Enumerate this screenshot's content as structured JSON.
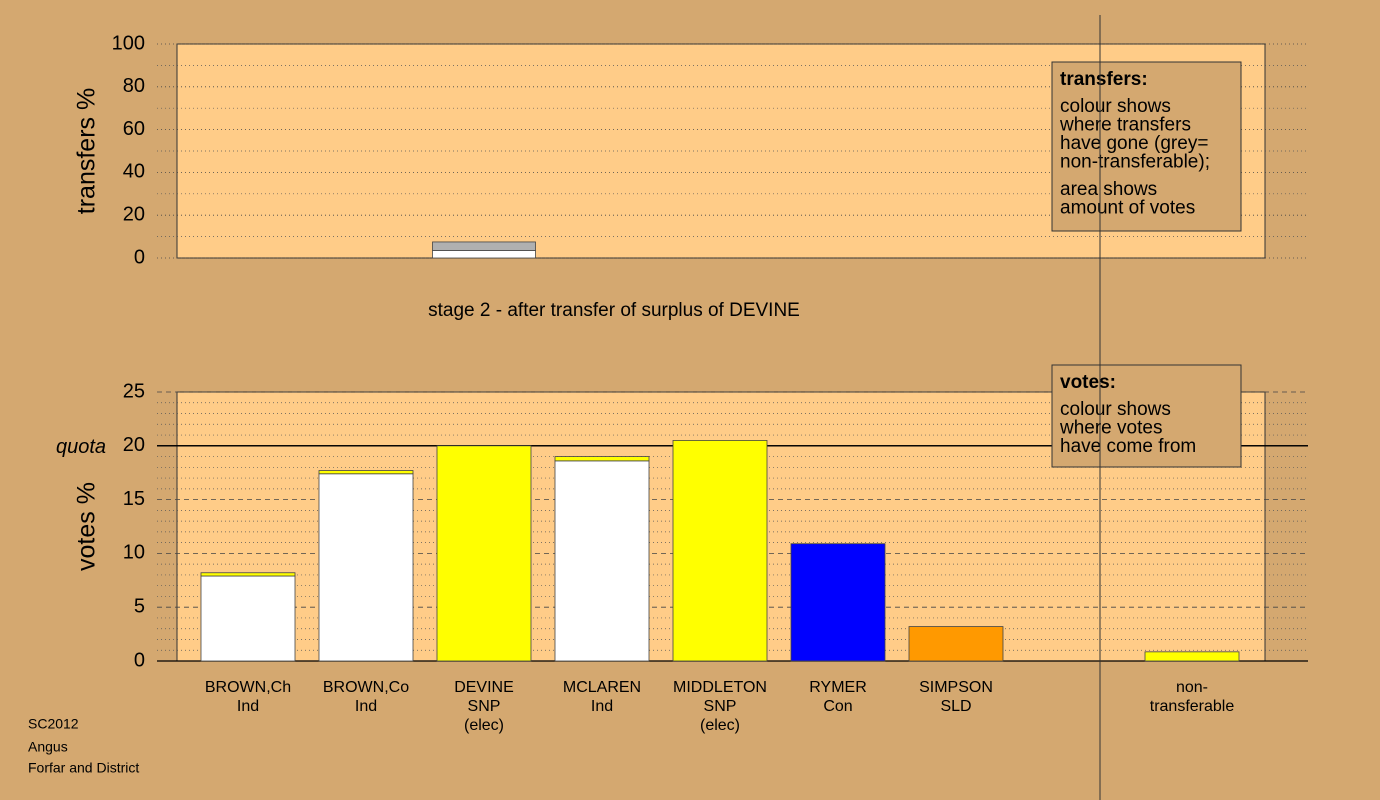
{
  "title": "stage 2 - after transfer of surplus of DEVINE",
  "footer": [
    "SC2012",
    "Angus",
    "Forfar and District"
  ],
  "chart_data": [
    {
      "type": "bar",
      "stacked": true,
      "ylabel": "transfers %",
      "ylim": [
        0,
        100
      ],
      "yticks": [
        0,
        20,
        40,
        60,
        80,
        100
      ],
      "series": [
        {
          "color": "#ffffff",
          "values": [
            null,
            null,
            3.5,
            null,
            null,
            null,
            null,
            null,
            null
          ]
        },
        {
          "color": "#b0b0b0",
          "values": [
            null,
            null,
            4,
            null,
            null,
            null,
            null,
            null,
            null
          ]
        }
      ],
      "legend": {
        "title": "transfers:",
        "paragraphs": [
          [
            "colour shows",
            "where transfers",
            "have gone (grey=",
            "non-transferable);"
          ],
          [
            "area shows",
            "amount of votes"
          ]
        ]
      }
    },
    {
      "type": "bar",
      "stacked": true,
      "ylabel": "votes %",
      "ylim": [
        0,
        25
      ],
      "yticks": [
        0,
        5,
        10,
        15,
        20,
        25
      ],
      "quota": {
        "value": 20,
        "label": "quota"
      },
      "categories": [
        [
          "BROWN,Ch",
          "Ind"
        ],
        [
          "BROWN,Co",
          "Ind"
        ],
        [
          "DEVINE",
          "SNP",
          "(elec)"
        ],
        [
          "MCLAREN",
          "Ind"
        ],
        [
          "MIDDLETON",
          "SNP",
          "(elec)"
        ],
        [
          "RYMER",
          "Con"
        ],
        [
          "SIMPSON",
          "SLD"
        ],
        null,
        [
          "non-",
          "transferable"
        ]
      ],
      "series": [
        {
          "color": "#ffffff",
          "values": [
            7.9,
            17.4,
            null,
            18.6,
            null,
            null,
            null,
            null,
            null
          ]
        },
        {
          "color": "#ffff00",
          "values": [
            0.3,
            0.3,
            20.0,
            0.4,
            20.5,
            null,
            null,
            null,
            0.85
          ]
        },
        {
          "color": "#0000ff",
          "values": [
            null,
            null,
            null,
            null,
            null,
            10.9,
            null,
            null,
            null
          ]
        },
        {
          "color": "#ff9900",
          "values": [
            null,
            null,
            null,
            null,
            null,
            null,
            3.2,
            null,
            null
          ]
        }
      ],
      "legend": {
        "title": "votes:",
        "paragraphs": [
          [
            "colour shows",
            "where votes",
            "have come from"
          ]
        ]
      }
    }
  ]
}
